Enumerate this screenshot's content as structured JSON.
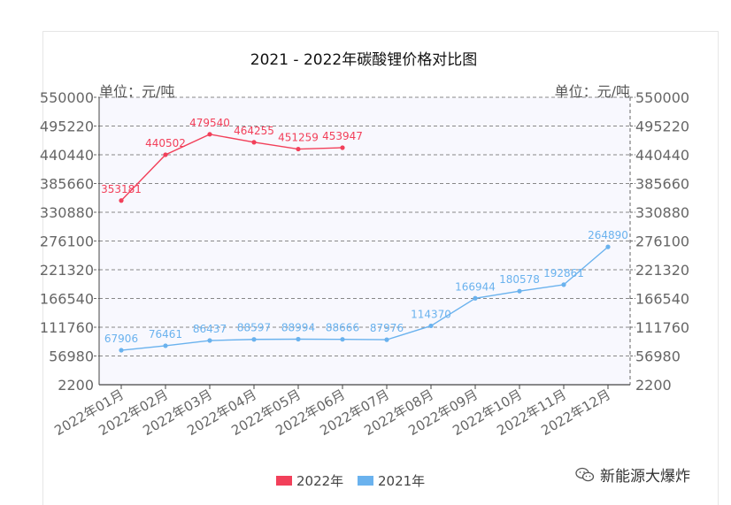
{
  "chart_data": {
    "type": "line",
    "title": "2021 - 2022年碳酸锂价格对比图",
    "unit_label_left": "单位：元/吨",
    "unit_label_right": "单位：元/吨",
    "ylim": [
      2200,
      550000
    ],
    "yticks": [
      550000,
      495220,
      440440,
      385660,
      330880,
      276100,
      221320,
      166540,
      111760,
      56980,
      2200
    ],
    "categories": [
      "2022年01月",
      "2022年02月",
      "2022年03月",
      "2022年04月",
      "2022年05月",
      "2022年06月",
      "2022年07月",
      "2022年08月",
      "2022年09月",
      "2022年10月",
      "2022年11月",
      "2022年12月"
    ],
    "grid": true,
    "legend_position": "bottom-center",
    "series": [
      {
        "name": "2022年",
        "color": "#f2405a",
        "values": [
          353181,
          440502,
          479540,
          464255,
          451259,
          453947,
          null,
          null,
          null,
          null,
          null,
          null
        ],
        "labels": [
          "353181",
          "440502",
          "479540",
          "464255",
          "451259",
          "453947"
        ]
      },
      {
        "name": "2021年",
        "color": "#6ab2ee",
        "values": [
          67906,
          76461,
          86437,
          88597,
          88994,
          88666,
          87976,
          114370,
          166944,
          180578,
          192861,
          264890
        ],
        "labels": [
          "67906",
          "76461",
          "86437",
          "88597",
          "88994",
          "88666",
          "87976",
          "114370",
          "166944",
          "180578",
          "192861",
          "264890"
        ]
      }
    ]
  },
  "watermark": {
    "text": "新能源大爆炸",
    "icon": "wechat-icon"
  }
}
